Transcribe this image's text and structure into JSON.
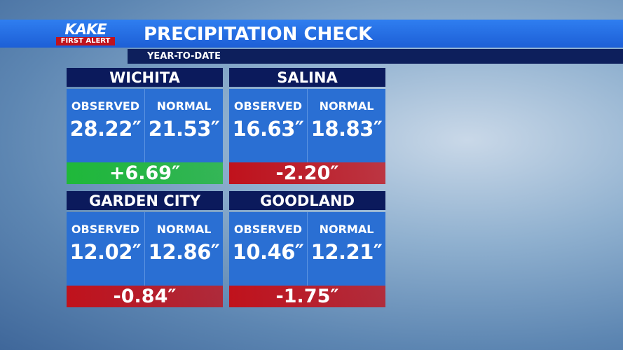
{
  "header": {
    "logo_top": "KAKE",
    "logo_bottom": "FIRST ALERT",
    "title": "PRECIPITATION CHECK",
    "subtitle": "YEAR-TO-DATE"
  },
  "cities": [
    {
      "name": "WICHITA",
      "observed_label": "OBSERVED",
      "normal_label": "NORMAL",
      "observed": "28.22″",
      "normal": "21.53″",
      "departure": "+6.69″",
      "color": "#1fb83a"
    },
    {
      "name": "SALINA",
      "observed_label": "OBSERVED",
      "normal_label": "NORMAL",
      "observed": "16.63″",
      "normal": "18.83″",
      "departure": "-2.20″",
      "color": "#c0121c"
    },
    {
      "name": "GARDEN CITY",
      "observed_label": "OBSERVED",
      "normal_label": "NORMAL",
      "observed": "12.02″",
      "normal": "12.86″",
      "departure": "-0.84″",
      "color": "#c0121c"
    },
    {
      "name": "GOODLAND",
      "observed_label": "OBSERVED",
      "normal_label": "NORMAL",
      "observed": "10.46″",
      "normal": "12.21″",
      "departure": "-1.75″",
      "color": "#c0121c"
    }
  ]
}
